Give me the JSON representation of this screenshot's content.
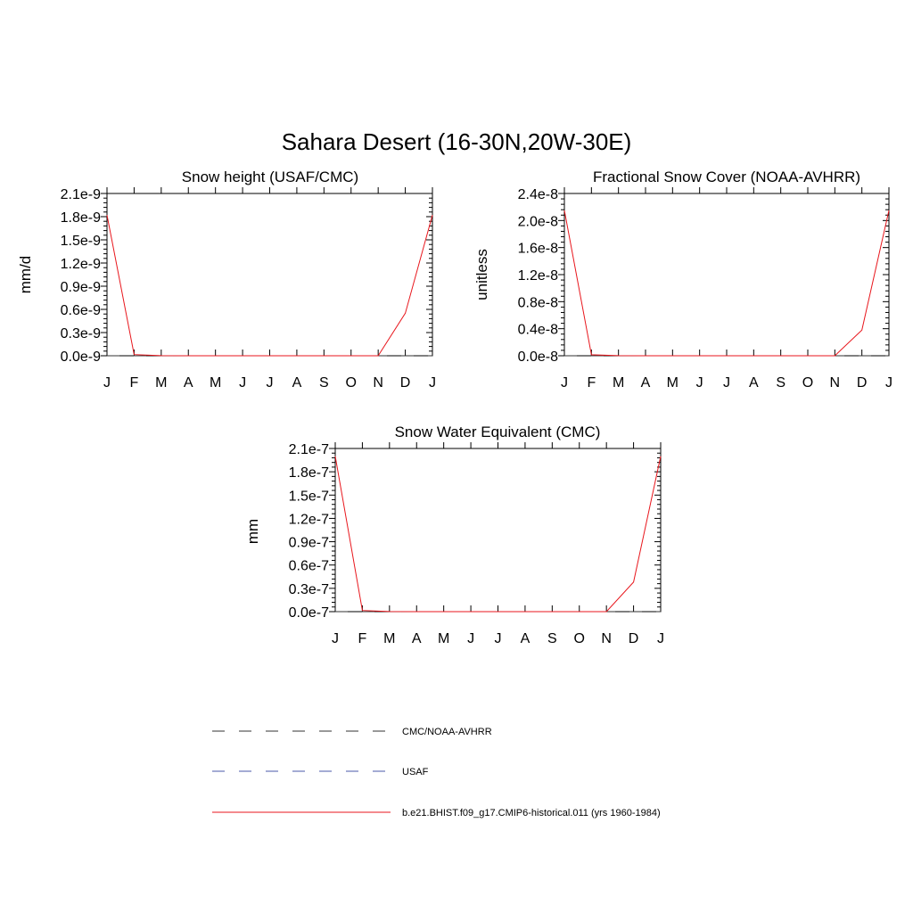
{
  "title": "Sahara Desert (16-30N,20W-30E)",
  "chart_data": [
    {
      "type": "line",
      "title": "Snow height (USAF/CMC)",
      "ylabel": "mm/d",
      "categories": [
        "J",
        "F",
        "M",
        "A",
        "M",
        "J",
        "J",
        "A",
        "S",
        "O",
        "N",
        "D",
        "J"
      ],
      "ylim": [
        0,
        2.1e-09
      ],
      "yticks": [
        0,
        3e-10,
        6e-10,
        9e-10,
        1.2e-09,
        1.5e-09,
        1.8e-09,
        2.1e-09
      ],
      "ytick_labels": [
        "0.0e-9",
        "0.3e-9",
        "0.6e-9",
        "0.9e-9",
        "1.2e-9",
        "1.5e-9",
        "1.8e-9",
        "2.1e-9"
      ],
      "series": [
        {
          "name": "b.e21.BHIST.f09_g17.CMIP6-historical.011 (yrs 1960-1984)",
          "color": "#e8161c",
          "style": "solid",
          "values": [
            1.82e-09,
            1.5e-11,
            2e-12,
            0,
            0,
            0,
            0,
            0,
            0,
            0,
            0,
            5.5e-10,
            1.82e-09
          ]
        },
        {
          "name": "USAF",
          "color": "#4a5aa8",
          "style": "dashed",
          "values": [
            0,
            0,
            0,
            0,
            0,
            0,
            0,
            0,
            0,
            0,
            0,
            0,
            0
          ]
        },
        {
          "name": "CMC/NOAA-AVHRR",
          "color": "#333333",
          "style": "dashed",
          "values": [
            0,
            0,
            0,
            0,
            0,
            0,
            0,
            0,
            0,
            0,
            0,
            0,
            0
          ]
        }
      ]
    },
    {
      "type": "line",
      "title": "Fractional Snow Cover (NOAA-AVHRR)",
      "ylabel": "unitless",
      "categories": [
        "J",
        "F",
        "M",
        "A",
        "M",
        "J",
        "J",
        "A",
        "S",
        "O",
        "N",
        "D",
        "J"
      ],
      "ylim": [
        0,
        2.4e-08
      ],
      "yticks": [
        0,
        4e-09,
        8e-09,
        1.2e-08,
        1.6e-08,
        2e-08,
        2.4e-08
      ],
      "ytick_labels": [
        "0.0e-8",
        "0.4e-8",
        "0.8e-8",
        "1.2e-8",
        "1.6e-8",
        "2.0e-8",
        "2.4e-8"
      ],
      "series": [
        {
          "name": "b.e21.BHIST.f09_g17.CMIP6-historical.011 (yrs 1960-1984)",
          "color": "#e8161c",
          "style": "solid",
          "values": [
            2.15e-08,
            1.5e-10,
            2e-11,
            0,
            0,
            0,
            0,
            0,
            0,
            0,
            0,
            3.8e-09,
            2.15e-08
          ]
        },
        {
          "name": "CMC/NOAA-AVHRR",
          "color": "#333333",
          "style": "dashed",
          "values": [
            0,
            0,
            0,
            0,
            0,
            0,
            0,
            0,
            0,
            0,
            0,
            0,
            0
          ]
        }
      ]
    },
    {
      "type": "line",
      "title": "Snow Water Equivalent (CMC)",
      "ylabel": "mm",
      "categories": [
        "J",
        "F",
        "M",
        "A",
        "M",
        "J",
        "J",
        "A",
        "S",
        "O",
        "N",
        "D",
        "J"
      ],
      "ylim": [
        0,
        2.1e-07
      ],
      "yticks": [
        0,
        3e-08,
        6e-08,
        9e-08,
        1.2e-07,
        1.5e-07,
        1.8e-07,
        2.1e-07
      ],
      "ytick_labels": [
        "0.0e-7",
        "0.3e-7",
        "0.6e-7",
        "0.9e-7",
        "1.2e-7",
        "1.5e-7",
        "1.8e-7",
        "2.1e-7"
      ],
      "series": [
        {
          "name": "b.e21.BHIST.f09_g17.CMIP6-historical.011 (yrs 1960-1984)",
          "color": "#e8161c",
          "style": "solid",
          "values": [
            2e-07,
            1.5e-09,
            2e-10,
            0,
            0,
            0,
            0,
            0,
            0,
            0,
            0,
            3.8e-08,
            2e-07
          ]
        },
        {
          "name": "CMC/NOAA-AVHRR",
          "color": "#333333",
          "style": "dashed",
          "values": [
            0,
            0,
            0,
            0,
            0,
            0,
            0,
            0,
            0,
            0,
            0,
            0,
            0
          ]
        }
      ]
    }
  ],
  "legend": [
    {
      "label": "CMC/NOAA-AVHRR",
      "color": "#333333",
      "style": "dashed"
    },
    {
      "label": "USAF",
      "color": "#4a5aa8",
      "style": "dashed"
    },
    {
      "label": "b.e21.BHIST.f09_g17.CMIP6-historical.011 (yrs 1960-1984)",
      "color": "#e8161c",
      "style": "solid"
    }
  ]
}
